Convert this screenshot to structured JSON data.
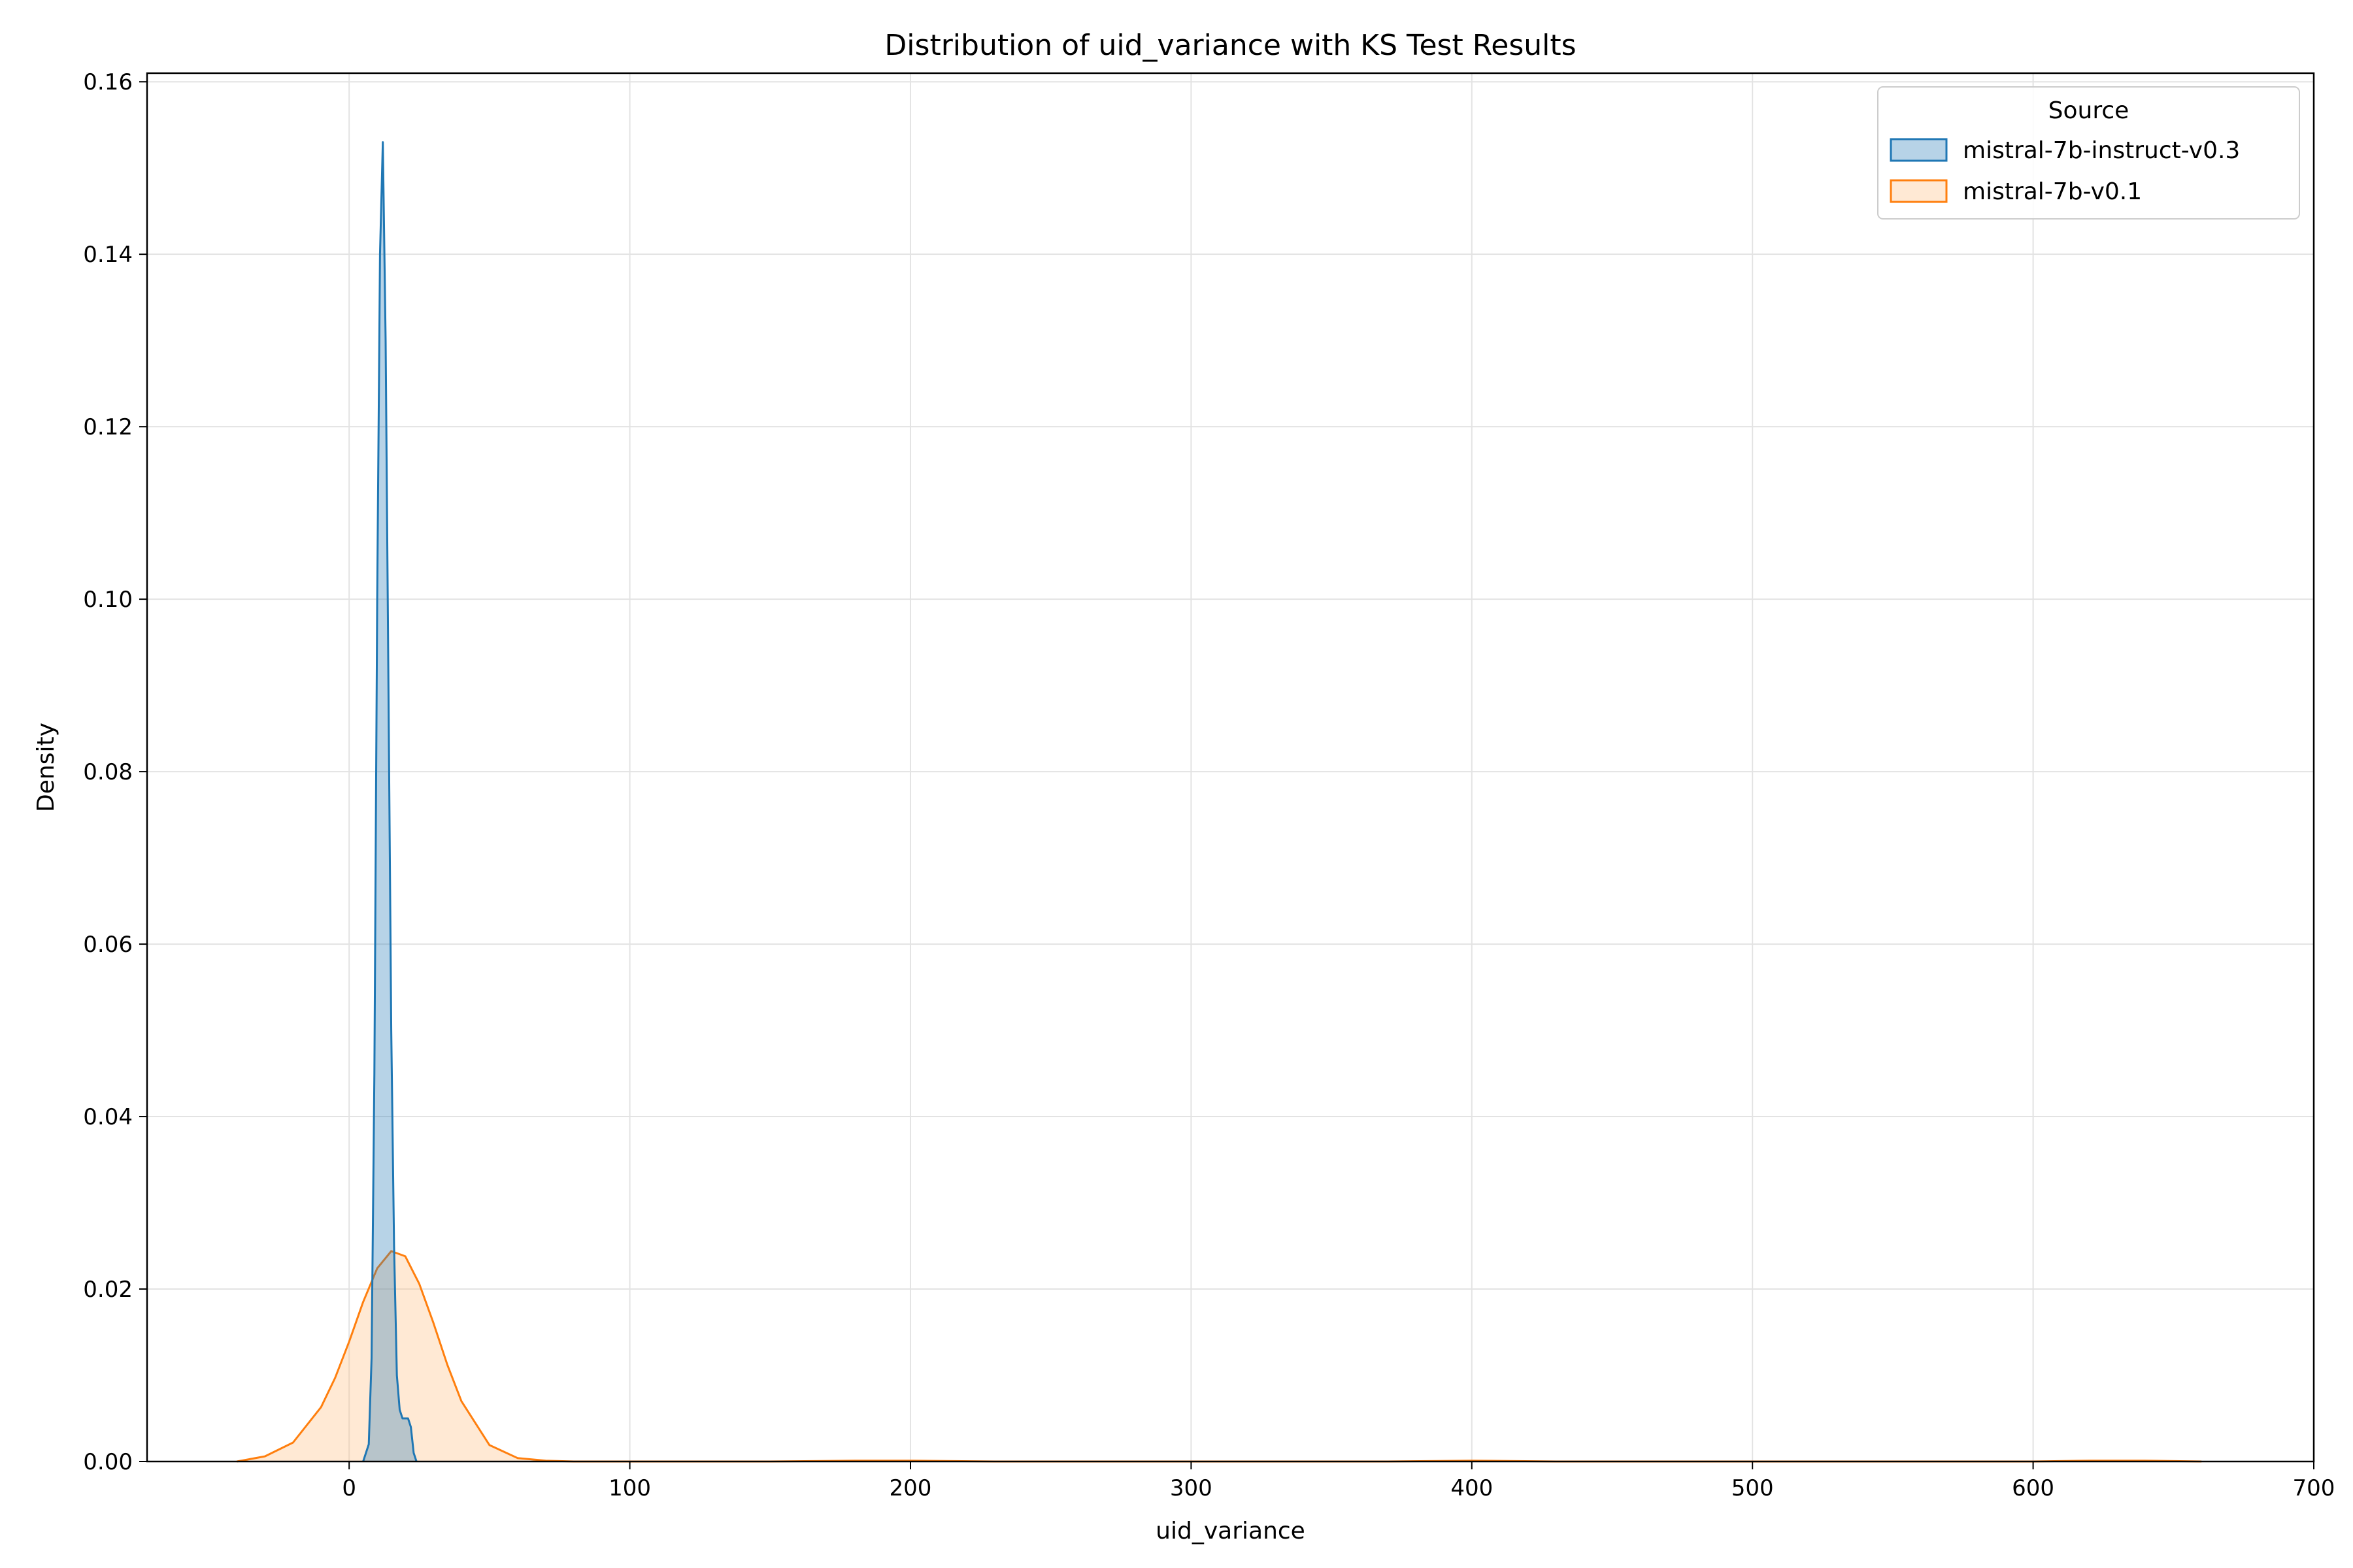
{
  "chart_data": {
    "type": "area",
    "title": "Distribution of uid_variance with KS Test Results",
    "xlabel": "uid_variance",
    "ylabel": "Density",
    "xlim": [
      -72,
      700
    ],
    "ylim": [
      0,
      0.161
    ],
    "xticks": [
      0,
      100,
      200,
      300,
      400,
      500,
      600,
      700
    ],
    "yticks": [
      0.0,
      0.02,
      0.04,
      0.06,
      0.08,
      0.1,
      0.12,
      0.14,
      0.16
    ],
    "ytick_labels": [
      "0.00",
      "0.02",
      "0.04",
      "0.06",
      "0.08",
      "0.10",
      "0.12",
      "0.14",
      "0.16"
    ],
    "grid": true,
    "legend": {
      "title": "Source",
      "placement": "top-right"
    },
    "series": [
      {
        "name": "mistral-7b-instruct-v0.3",
        "color": "#1f77b4",
        "fill": "#1f77b4",
        "x": [
          5,
          7,
          8,
          9,
          10,
          11,
          12,
          13,
          14,
          15,
          16,
          17,
          18,
          19,
          20,
          21,
          22,
          23,
          24
        ],
        "y": [
          0.0,
          0.002,
          0.012,
          0.045,
          0.1,
          0.14,
          0.153,
          0.13,
          0.09,
          0.05,
          0.025,
          0.01,
          0.006,
          0.005,
          0.005,
          0.005,
          0.004,
          0.001,
          0.0
        ]
      },
      {
        "name": "mistral-7b-v0.1",
        "color": "#ff7f0e",
        "fill": "#ffbb78",
        "x": [
          -40,
          -30,
          -20,
          -10,
          -5,
          0,
          5,
          10,
          15,
          20,
          25,
          30,
          35,
          40,
          50,
          60,
          70,
          80,
          100,
          150,
          180,
          200,
          230,
          300,
          370,
          400,
          430,
          500,
          600,
          620,
          640,
          660
        ],
        "y": [
          0.0,
          0.0006,
          0.0022,
          0.0063,
          0.0097,
          0.0139,
          0.0185,
          0.0224,
          0.0244,
          0.0238,
          0.0206,
          0.0161,
          0.0112,
          0.007,
          0.0019,
          0.0004,
          0.0001,
          0.0,
          0.0,
          0.0,
          0.0001,
          0.0001,
          0.0,
          0.0,
          0.0,
          0.0001,
          0.0,
          0.0,
          0.0,
          0.0001,
          0.0001,
          0.0
        ]
      }
    ]
  }
}
